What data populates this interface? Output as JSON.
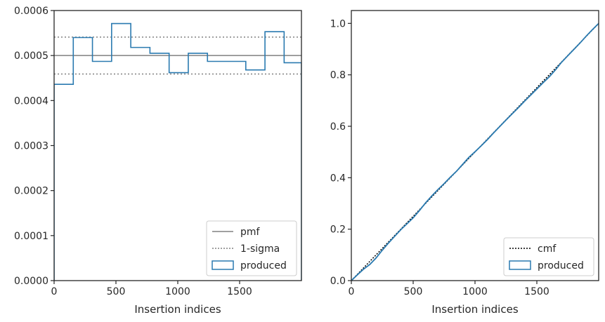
{
  "chart_data": [
    {
      "type": "line",
      "xlabel": "Insertion indices",
      "ylabel": "",
      "xlim": [
        0,
        2000
      ],
      "ylim": [
        0,
        0.0006
      ],
      "x_ticks": [
        0,
        500,
        1000,
        1500
      ],
      "x_tick_labels": [
        "0",
        "500",
        "1000",
        "1500"
      ],
      "y_ticks": [
        0,
        0.0001,
        0.0002,
        0.0003,
        0.0004,
        0.0005,
        0.0006
      ],
      "y_tick_labels": [
        "0.0000",
        "0.0001",
        "0.0002",
        "0.0003",
        "0.0004",
        "0.0005",
        "0.0006"
      ],
      "grid": false,
      "legend_placement": "lower-right",
      "hlines": [
        {
          "name": "pmf",
          "y": 0.0005,
          "style": "solid",
          "color": "#808080"
        },
        {
          "name": "1-sigma",
          "y": 0.000541,
          "style": "dotted",
          "color": "#808080"
        },
        {
          "name": "1-sigma",
          "y": 0.000459,
          "style": "dotted",
          "color": "#808080"
        }
      ],
      "histogram": {
        "name": "produced",
        "color": "#2a7ab0",
        "bin_edges": [
          0,
          155,
          310,
          465,
          620,
          775,
          930,
          1085,
          1240,
          1395,
          1550,
          1705,
          1860,
          2000
        ],
        "values": [
          0.000436,
          0.00054,
          0.000487,
          0.000571,
          0.000518,
          0.000505,
          0.000462,
          0.000505,
          0.000487,
          0.000487,
          0.000468,
          0.000553,
          0.000484
        ]
      },
      "legend": [
        {
          "label": "pmf",
          "kind": "solid-line",
          "color": "#808080"
        },
        {
          "label": "1-sigma",
          "kind": "dotted-line",
          "color": "#808080"
        },
        {
          "label": "produced",
          "kind": "box",
          "color": "#2a7ab0"
        }
      ]
    },
    {
      "type": "line",
      "xlabel": "Insertion indices",
      "ylabel": "",
      "xlim": [
        0,
        2000
      ],
      "ylim": [
        0,
        1.05
      ],
      "x_ticks": [
        0,
        500,
        1000,
        1500
      ],
      "x_tick_labels": [
        "0",
        "500",
        "1000",
        "1500"
      ],
      "y_ticks": [
        0,
        0.2,
        0.4,
        0.6,
        0.8,
        1.0
      ],
      "y_tick_labels": [
        "0.0",
        "0.2",
        "0.4",
        "0.6",
        "0.8",
        "1.0"
      ],
      "grid": false,
      "legend_placement": "lower-right",
      "series": [
        {
          "name": "cmf",
          "style": "dotted",
          "color": "#000000",
          "x": [
            0,
            2000
          ],
          "y": [
            0,
            1.0
          ]
        },
        {
          "name": "produced",
          "style": "solid",
          "color": "#2a7ab0",
          "x": [
            0,
            50,
            100,
            150,
            200,
            250,
            300,
            350,
            400,
            450,
            500,
            550,
            600,
            650,
            700,
            750,
            800,
            850,
            900,
            950,
            1000,
            1050,
            1100,
            1150,
            1200,
            1250,
            1300,
            1350,
            1400,
            1450,
            1500,
            1550,
            1600,
            1650,
            1700,
            1750,
            1800,
            1850,
            1900,
            1950,
            2000
          ],
          "y": [
            0,
            0.023,
            0.045,
            0.063,
            0.088,
            0.118,
            0.146,
            0.172,
            0.198,
            0.221,
            0.244,
            0.272,
            0.302,
            0.329,
            0.354,
            0.377,
            0.402,
            0.425,
            0.452,
            0.479,
            0.501,
            0.524,
            0.548,
            0.574,
            0.599,
            0.624,
            0.648,
            0.672,
            0.697,
            0.721,
            0.745,
            0.769,
            0.792,
            0.819,
            0.849,
            0.874,
            0.899,
            0.924,
            0.951,
            0.976,
            1.0
          ]
        }
      ],
      "legend": [
        {
          "label": "cmf",
          "kind": "dotted-line",
          "color": "#000000"
        },
        {
          "label": "produced",
          "kind": "box",
          "color": "#2a7ab0"
        }
      ]
    }
  ]
}
